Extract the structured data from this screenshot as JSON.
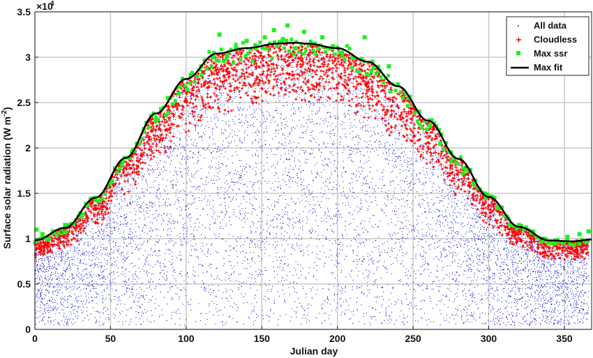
{
  "chart_data": {
    "type": "scatter",
    "title": "",
    "xlabel": "Julian day",
    "ylabel_main": "Surface  solar  radiation (W  m",
    "ylabel_exp": "-2",
    "ylabel_close": ")",
    "y_multiplier": {
      "base": "×10",
      "exp": "4"
    },
    "xlim": [
      0,
      368
    ],
    "ylim": [
      0,
      3.5
    ],
    "xticks": [
      0,
      50,
      100,
      150,
      200,
      250,
      300,
      350
    ],
    "yticks": [
      0,
      0.5,
      1,
      1.5,
      2,
      2.5,
      3,
      3.5
    ],
    "ytick_labels": [
      "0",
      "0.5",
      "1",
      "1.5",
      "2",
      "2.5",
      "3",
      "3.5"
    ],
    "grid": true,
    "legend_position": "top-right",
    "colors": {
      "all_data": "#1a1adf",
      "cloudless": "#ff0000",
      "max_ssr": "#22ee22",
      "max_fit": "#000000"
    },
    "series": [
      {
        "name": "All data",
        "marker": "dot",
        "description_units": "x10^4 W m-2",
        "max_fit_fraction_range": [
          0,
          1
        ]
      },
      {
        "name": "Cloudless",
        "marker": "plus",
        "band_below_fit": [
          0.78,
          1.0
        ]
      },
      {
        "name": "Max ssr",
        "marker": "square"
      },
      {
        "name": "Max fit",
        "marker": "line",
        "x": [
          0,
          20,
          40,
          60,
          80,
          100,
          120,
          140,
          160,
          172,
          180,
          200,
          220,
          240,
          260,
          280,
          300,
          320,
          340,
          355,
          368
        ],
        "values": [
          0.98,
          1.12,
          1.45,
          1.89,
          2.38,
          2.76,
          3.04,
          3.1,
          3.15,
          3.16,
          3.15,
          3.1,
          2.95,
          2.68,
          2.3,
          1.88,
          1.46,
          1.13,
          0.98,
          0.97,
          0.99
        ]
      }
    ],
    "max_ssr_points": {
      "x": [
        1,
        5,
        12,
        20,
        30,
        40,
        50,
        58,
        65,
        72,
        80,
        88,
        95,
        103,
        110,
        118,
        122,
        127,
        133,
        140,
        146,
        152,
        158,
        164,
        167,
        172,
        178,
        185,
        190,
        197,
        203,
        210,
        218,
        223,
        228,
        234,
        240,
        247,
        254,
        261,
        268,
        275,
        283,
        290,
        298,
        306,
        313,
        320,
        328,
        336,
        344,
        352,
        360,
        366
      ],
      "values": [
        1.1,
        1.05,
        1.08,
        1.15,
        1.28,
        1.45,
        1.62,
        1.85,
        1.98,
        2.18,
        2.3,
        2.55,
        2.6,
        2.8,
        2.9,
        3.0,
        3.25,
        3.02,
        3.1,
        3.18,
        3.1,
        3.22,
        3.3,
        3.2,
        3.35,
        3.1,
        3.28,
        3.15,
        3.22,
        3.12,
        3.05,
        3.0,
        3.22,
        2.95,
        2.85,
        2.9,
        2.7,
        2.55,
        2.4,
        2.25,
        2.05,
        1.95,
        1.72,
        1.6,
        1.45,
        1.35,
        1.22,
        1.15,
        1.08,
        1.0,
        0.98,
        1.02,
        1.05,
        1.08
      ]
    }
  }
}
